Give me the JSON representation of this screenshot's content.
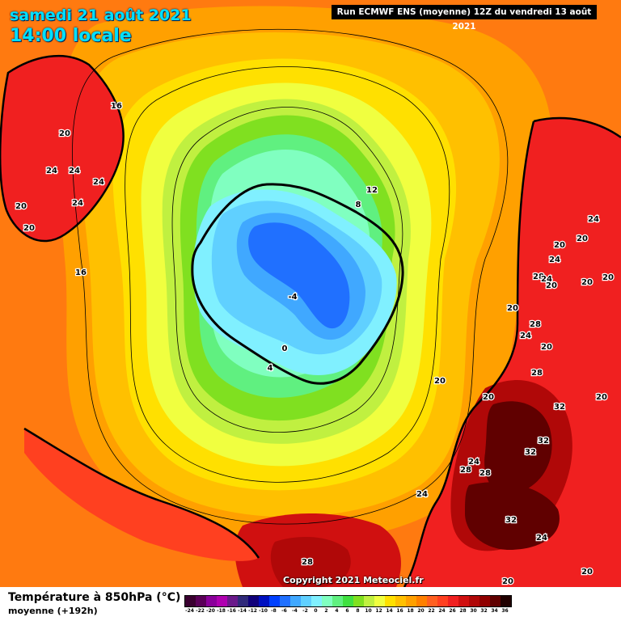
{
  "header": {
    "date": "samedi 21 août 2021",
    "local_time": "14:00 locale",
    "run_info": "Run ECMWF ENS (moyenne) 12Z du vendredi 13 août 2021"
  },
  "copyright": "Copyright 2021 Meteociel.fr",
  "footer": {
    "title": "Température à 850hPa (°C)",
    "subtitle": "moyenne   (+192h)"
  },
  "legend": {
    "ticks": [
      "-24",
      "-22",
      "-20",
      "-18",
      "-16",
      "-14",
      "-12",
      "-10",
      "-8",
      "-6",
      "-4",
      "-2",
      "0",
      "2",
      "4",
      "6",
      "8",
      "10",
      "12",
      "14",
      "16",
      "18",
      "20",
      "22",
      "24",
      "26",
      "28",
      "30",
      "32",
      "34",
      "36"
    ],
    "colors": [
      "#3a0030",
      "#5a0058",
      "#8a009a",
      "#b000b0",
      "#6a1a8a",
      "#302a7a",
      "#10007a",
      "#0010c0",
      "#0040ff",
      "#2070ff",
      "#40a8ff",
      "#60d0ff",
      "#80f0ff",
      "#80ffc0",
      "#60f080",
      "#40e040",
      "#80e020",
      "#c0f040",
      "#f0ff40",
      "#ffe000",
      "#ffc000",
      "#ffa000",
      "#ff8000",
      "#ff6020",
      "#ff4020",
      "#f02020",
      "#d01010",
      "#b00808",
      "#900000",
      "#600000",
      "#200000"
    ]
  },
  "map_labels": [
    {
      "id": "16-ne",
      "text": "16"
    },
    {
      "id": "20-w1",
      "text": "20"
    },
    {
      "id": "24-w1",
      "text": "24"
    },
    {
      "id": "24-w2",
      "text": "24"
    },
    {
      "id": "24-w3",
      "text": "24"
    },
    {
      "id": "24-w4",
      "text": "24"
    },
    {
      "id": "20-w2",
      "text": "20"
    },
    {
      "id": "20-w3",
      "text": "20"
    },
    {
      "id": "16-w",
      "text": "16"
    },
    {
      "id": "12-n",
      "text": "12"
    },
    {
      "id": "8-n",
      "text": "8"
    },
    {
      "id": "m4-c",
      "text": "-4"
    },
    {
      "id": "0-c",
      "text": "0"
    },
    {
      "id": "4-c",
      "text": "4"
    },
    {
      "id": "24-e1",
      "text": "24"
    },
    {
      "id": "20-e1",
      "text": "20"
    },
    {
      "id": "20-e2",
      "text": "20"
    },
    {
      "id": "24-e2",
      "text": "24"
    },
    {
      "id": "20-e3",
      "text": "20"
    },
    {
      "id": "28-e1",
      "text": "28"
    },
    {
      "id": "24-e3",
      "text": "24"
    },
    {
      "id": "20-e4",
      "text": "20"
    },
    {
      "id": "20-e5",
      "text": "20"
    },
    {
      "id": "20-e6",
      "text": "20"
    },
    {
      "id": "28-e2",
      "text": "28"
    },
    {
      "id": "24-e4",
      "text": "24"
    },
    {
      "id": "20-e7",
      "text": "20"
    },
    {
      "id": "28-e3",
      "text": "28"
    },
    {
      "id": "20-e8",
      "text": "20"
    },
    {
      "id": "20-e9",
      "text": "20"
    },
    {
      "id": "32-s1",
      "text": "32"
    },
    {
      "id": "20-e10",
      "text": "20"
    },
    {
      "id": "32-s2",
      "text": "32"
    },
    {
      "id": "32-s3",
      "text": "32"
    },
    {
      "id": "24-s1",
      "text": "24"
    },
    {
      "id": "28-s1",
      "text": "28"
    },
    {
      "id": "28-s2",
      "text": "28"
    },
    {
      "id": "24-s2",
      "text": "24"
    },
    {
      "id": "32-s4",
      "text": "32"
    },
    {
      "id": "24-s3",
      "text": "24"
    },
    {
      "id": "28-s3",
      "text": "28"
    },
    {
      "id": "20-s1",
      "text": "20"
    },
    {
      "id": "20-s2",
      "text": "20"
    }
  ]
}
